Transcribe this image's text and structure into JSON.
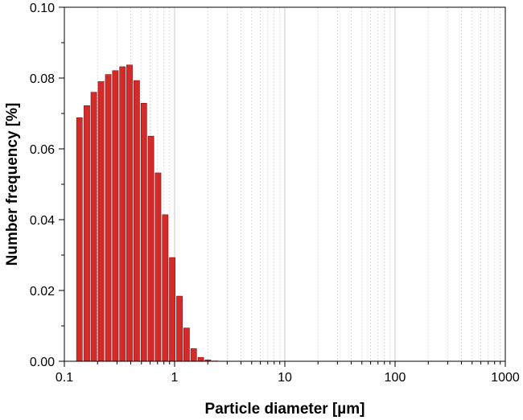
{
  "chart_data": {
    "type": "bar",
    "title": "",
    "xlabel": "Particle diameter [µm]",
    "ylabel": "Number frequency [%]",
    "x_scale": "log",
    "xlim": [
      0.1,
      1000
    ],
    "ylim": [
      0,
      0.1
    ],
    "grid": {
      "major_vertical": true,
      "minor_vertical": true,
      "horizontal": false
    },
    "colors": {
      "bar_fill": "#d32a2a",
      "bar_edge": "#8b1010",
      "major_grid": "#c8c8c8",
      "minor_grid": "#d6d6d6",
      "axis": "#000000"
    },
    "x_ticks": [
      {
        "value": 0.1,
        "label": "0.1"
      },
      {
        "value": 1,
        "label": "1"
      },
      {
        "value": 10,
        "label": "10"
      },
      {
        "value": 100,
        "label": "100"
      },
      {
        "value": 1000,
        "label": "1000"
      }
    ],
    "y_ticks": [
      {
        "value": 0,
        "label": "0.00"
      },
      {
        "value": 0.02,
        "label": "0.02"
      },
      {
        "value": 0.04,
        "label": "0.04"
      },
      {
        "value": 0.06,
        "label": "0.06"
      },
      {
        "value": 0.08,
        "label": "0.08"
      },
      {
        "value": 0.1,
        "label": "0.10"
      }
    ],
    "x": [
      0.137,
      0.16,
      0.185,
      0.215,
      0.25,
      0.29,
      0.337,
      0.39,
      0.453,
      0.526,
      0.61,
      0.708,
      0.822,
      0.953,
      1.107,
      1.284,
      1.49,
      1.73,
      2.007,
      2.33,
      2.703,
      3.14
    ],
    "values": [
      0.0688,
      0.0722,
      0.076,
      0.079,
      0.081,
      0.0821,
      0.0832,
      0.0837,
      0.0793,
      0.0729,
      0.0636,
      0.0532,
      0.0414,
      0.0293,
      0.0184,
      0.0094,
      0.0036,
      0.0011,
      0.0004,
      0.0001,
      0.0,
      0.0
    ]
  }
}
